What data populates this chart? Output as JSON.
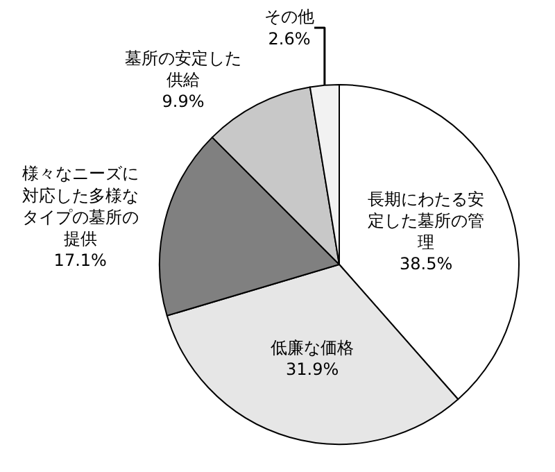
{
  "chart_data": {
    "type": "pie",
    "categories": [
      "長期にわたる安定した墓所の管理",
      "低廉な価格",
      "様々なニーズに対応した多様なタイプの墓所の提供",
      "墓所の安定した供給",
      "その他"
    ],
    "values": [
      38.5,
      31.9,
      17.1,
      9.9,
      2.6
    ],
    "value_labels": [
      "38.5%",
      "31.9%",
      "17.1%",
      "9.9%",
      "2.6%"
    ],
    "colors": [
      "#ffffff",
      "#e6e6e6",
      "#808080",
      "#c8c8c8",
      "#f2f2f2"
    ],
    "legend": false
  }
}
